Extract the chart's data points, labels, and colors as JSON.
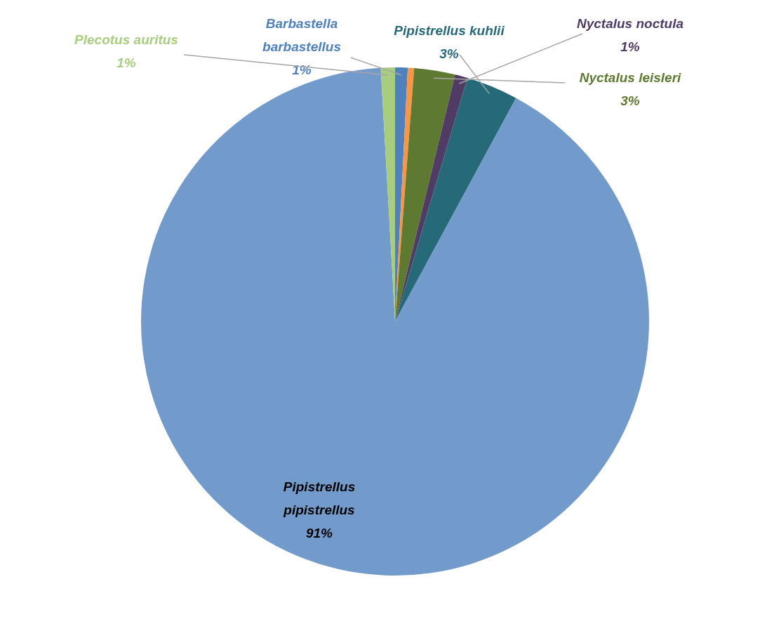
{
  "chart_data": {
    "type": "pie",
    "categories": [
      "Barbastella barbastellus",
      null,
      "Nyctalus leisleri",
      "Nyctalus noctula",
      "Pipistrellus kuhlii",
      "Pipistrellus pipistrellus",
      "Plecotus auritus"
    ],
    "values": [
      0.8,
      0.4,
      2.6,
      0.8,
      3.3,
      91.2,
      0.9
    ],
    "value_labels": [
      "1%",
      null,
      "3%",
      "1%",
      "3%",
      "91%",
      "1%"
    ],
    "colors": [
      "#4f81bd",
      "#f79646",
      "#5e7a30",
      "#4f3b63",
      "#266a7a",
      "#729acb",
      "#a9cd7e"
    ]
  }
}
